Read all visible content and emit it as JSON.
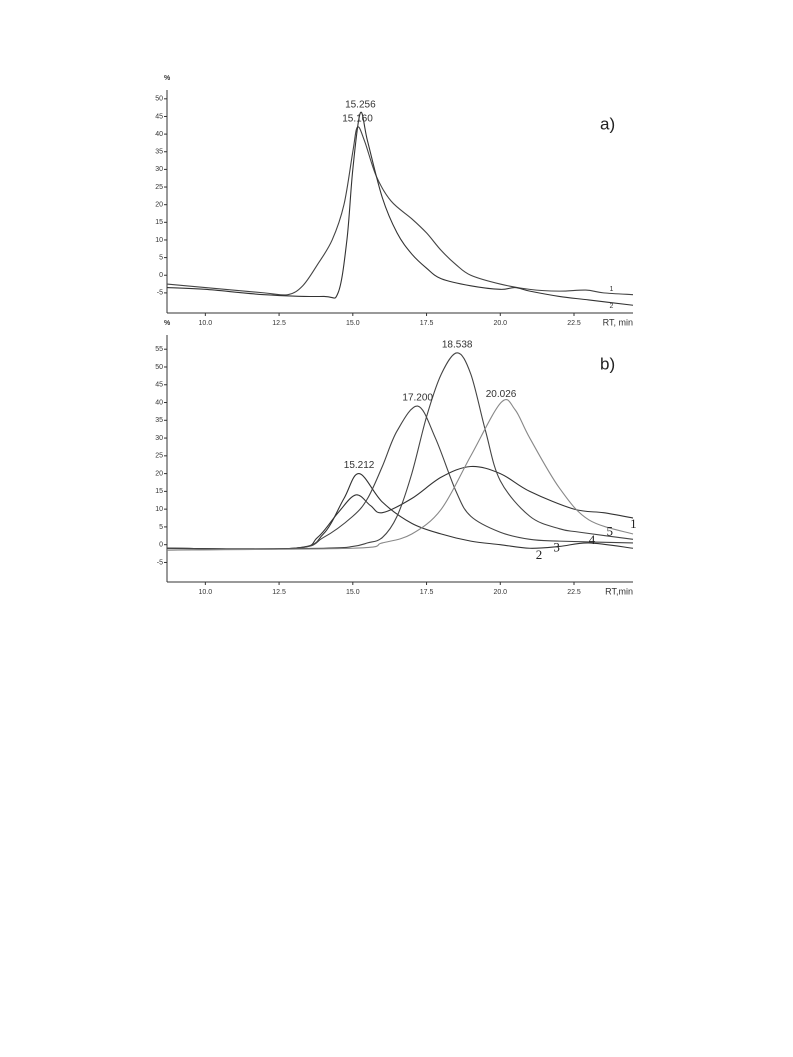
{
  "chart_data": [
    {
      "type": "line",
      "panel_label": "a)",
      "ylabel": "%",
      "xlabel": "RT, min",
      "xlim": [
        8.7,
        24.5
      ],
      "ylim": [
        -10.7,
        52.5
      ],
      "xticks": [
        {
          "value": 10,
          "label": "10.0"
        },
        12.5,
        {
          "value": 15,
          "label": "15.0"
        },
        17.5,
        {
          "value": 20,
          "label": "20.0"
        },
        22.5
      ],
      "yticks": [
        -5,
        0,
        5,
        10,
        15,
        20,
        25,
        30,
        35,
        40,
        45,
        50
      ],
      "series": [
        {
          "name": "1",
          "color": "#444444",
          "x": [
            8.7,
            10,
            12,
            12.8,
            13.3,
            13.8,
            14.3,
            14.7,
            15,
            15.16,
            15.4,
            15.8,
            16.3,
            17,
            17.5,
            18,
            18.5,
            19,
            20,
            21,
            22,
            22.9,
            23.5,
            24.5
          ],
          "values": [
            -2.5,
            -3.5,
            -5,
            -5.5,
            -3,
            3,
            10,
            20,
            35,
            42,
            38,
            28,
            21,
            16,
            12,
            7,
            3,
            0,
            -2.5,
            -4,
            -4.5,
            -4.2,
            -5,
            -5.5
          ]
        },
        {
          "name": "2",
          "color": "#333333",
          "x": [
            8.7,
            10,
            12,
            14,
            14.5,
            14.8,
            15,
            15.256,
            15.5,
            16,
            16.5,
            17,
            17.5,
            18,
            19,
            20,
            20.5,
            21,
            22,
            23,
            24.5
          ],
          "values": [
            -3.5,
            -4,
            -5.5,
            -6,
            -5,
            10,
            30,
            46,
            38,
            22,
            12,
            6,
            2,
            -1,
            -3,
            -4,
            -3.5,
            -4.5,
            -6,
            -7,
            -8.5
          ]
        }
      ],
      "annotations": [
        {
          "x": 15.256,
          "y": 46,
          "label": "15.256"
        },
        {
          "x": 15.16,
          "y": 42,
          "label": "15.160"
        }
      ]
    },
    {
      "type": "line",
      "panel_label": "b)",
      "ylabel": "%",
      "xlabel": "RT,min",
      "xlim": [
        8.7,
        24.5
      ],
      "ylim": [
        -10.5,
        59
      ],
      "xticks": [
        {
          "value": 10,
          "label": "10.0"
        },
        12.5,
        {
          "value": 15,
          "label": "15.0"
        },
        17.5,
        {
          "value": 20,
          "label": "20.0"
        },
        22.5
      ],
      "yticks": [
        -5,
        0,
        5,
        10,
        15,
        20,
        25,
        30,
        35,
        40,
        45,
        50,
        55
      ],
      "series": [
        {
          "name": "1",
          "color": "#333333",
          "x": [
            8.7,
            13,
            13.8,
            14.5,
            15.1,
            15.6,
            16,
            17,
            18,
            19,
            20,
            21,
            22.5,
            23.5,
            24.5
          ],
          "values": [
            -1,
            -1,
            2,
            9,
            14,
            11,
            9,
            13,
            19,
            22,
            20,
            15,
            10,
            9,
            7.5
          ]
        },
        {
          "name": "2",
          "color": "#333333",
          "x": [
            8.7,
            13,
            14,
            14.7,
            15.212,
            16,
            17,
            18,
            19,
            20,
            21,
            22,
            23,
            24.5
          ],
          "values": [
            -1,
            -1,
            3,
            13,
            20,
            12,
            6,
            3,
            1,
            0,
            -1,
            -0.5,
            0.5,
            -1
          ]
        },
        {
          "name": "3",
          "color": "#444444",
          "x": [
            8.7,
            13,
            14,
            15,
            15.5,
            16,
            16.5,
            17.2,
            17.8,
            18.5,
            19,
            20,
            21,
            22,
            24.5
          ],
          "values": [
            -1,
            -1,
            2,
            8,
            13,
            22,
            32,
            39,
            30,
            15,
            8,
            3.5,
            1.5,
            1,
            0.5
          ]
        },
        {
          "name": "4",
          "color": "#444444",
          "x": [
            8.7,
            14,
            15,
            15.5,
            16,
            16.5,
            17,
            17.5,
            18,
            18.538,
            19,
            19.5,
            20,
            21,
            22,
            22.7,
            24.5
          ],
          "values": [
            -1.5,
            -1,
            -0.5,
            0.5,
            2,
            8,
            20,
            36,
            48,
            54,
            48,
            32,
            18,
            8,
            4.5,
            3.5,
            1.5
          ]
        },
        {
          "name": "5",
          "color": "#888888",
          "x": [
            8.7,
            15,
            16,
            17,
            18,
            19,
            20.026,
            20.5,
            21,
            22,
            23,
            24.5
          ],
          "values": [
            -1.5,
            -1,
            0.5,
            3,
            10,
            25,
            40,
            38,
            30,
            16,
            7,
            3
          ]
        }
      ],
      "annotations": [
        {
          "x": 15.212,
          "y": 20,
          "label": "15.212"
        },
        {
          "x": 17.2,
          "y": 39,
          "label": "17.200"
        },
        {
          "x": 18.538,
          "y": 54,
          "label": "18.538"
        },
        {
          "x": 20.026,
          "y": 40,
          "label": "20.026"
        }
      ]
    }
  ]
}
